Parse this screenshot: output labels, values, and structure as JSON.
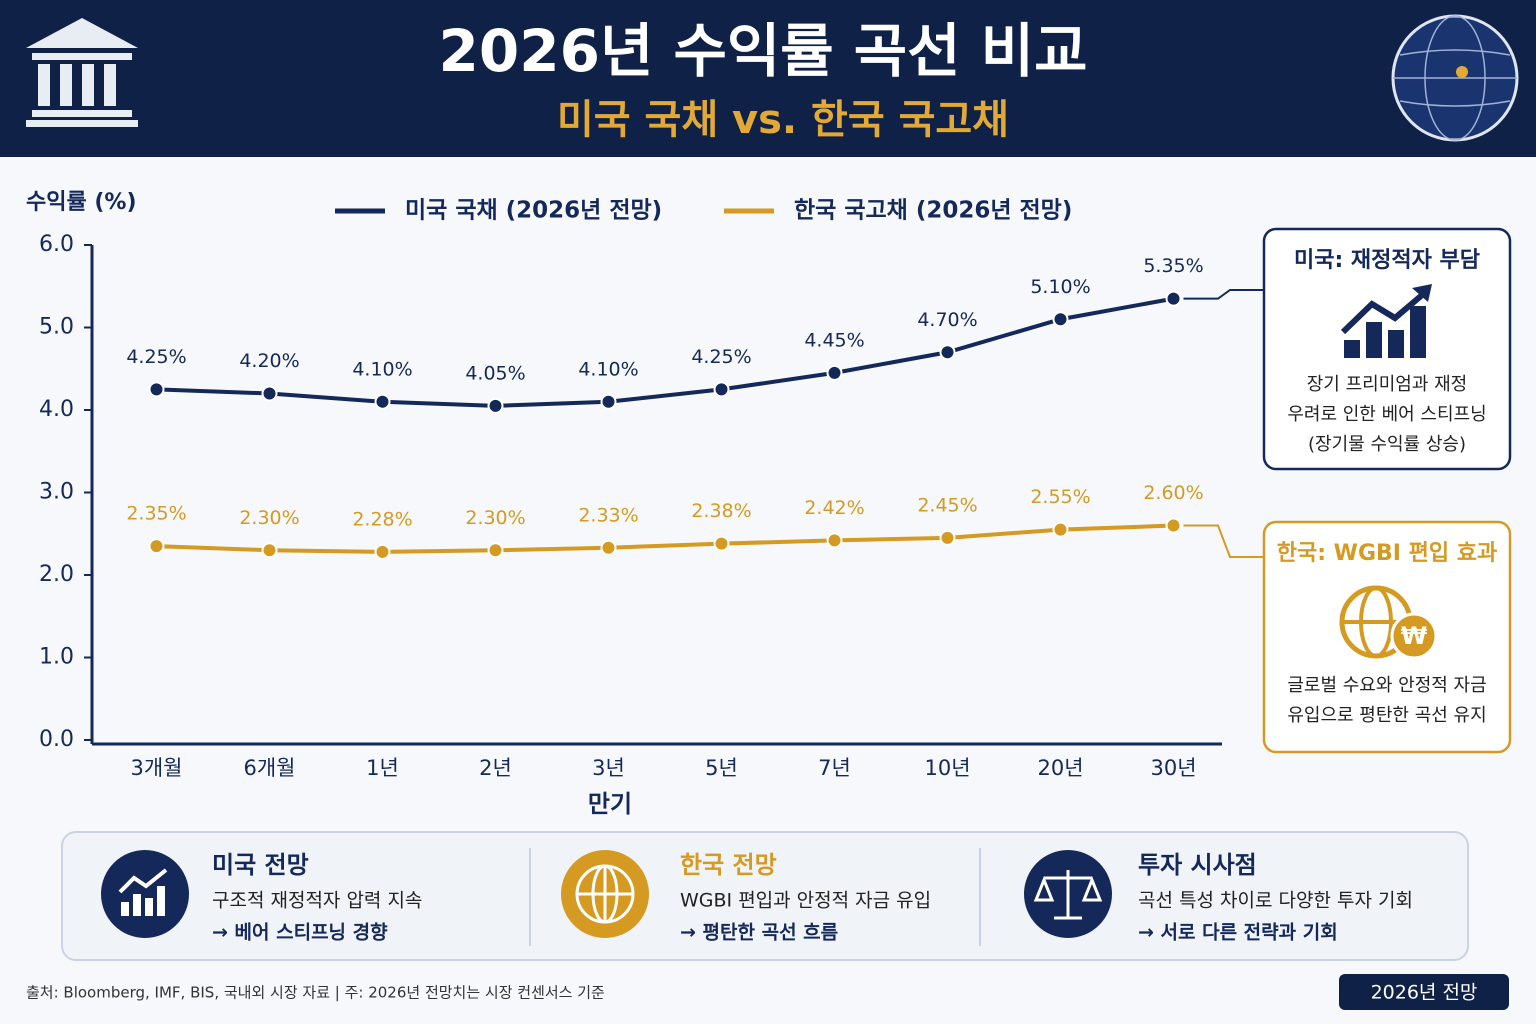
{
  "header": {
    "title": "2026년 수익률 곡선 비교",
    "subtitle": "미국 국채 vs. 한국 국고채"
  },
  "chart_data": {
    "type": "line",
    "y_label": "수익률 (%)",
    "x_label": "만기",
    "categories": [
      "3개월",
      "6개월",
      "1년",
      "2년",
      "3년",
      "5년",
      "7년",
      "10년",
      "20년",
      "30년"
    ],
    "series": [
      {
        "name": "미국 국채 (2026년 전망)",
        "color": "#14285a",
        "values": [
          4.25,
          4.2,
          4.1,
          4.05,
          4.1,
          4.25,
          4.45,
          4.7,
          5.1,
          5.35
        ],
        "value_labels": [
          "4.25%",
          "4.20%",
          "4.10%",
          "4.05%",
          "4.10%",
          "4.25%",
          "4.45%",
          "4.70%",
          "5.10%",
          "5.35%"
        ]
      },
      {
        "name": "한국 국고채 (2026년 전망)",
        "color": "#d49a22",
        "values": [
          2.35,
          2.3,
          2.28,
          2.3,
          2.33,
          2.38,
          2.42,
          2.45,
          2.55,
          2.6
        ],
        "value_labels": [
          "2.35%",
          "2.30%",
          "2.28%",
          "2.30%",
          "2.33%",
          "2.38%",
          "2.42%",
          "2.45%",
          "2.55%",
          "2.60%"
        ]
      }
    ],
    "ylim": [
      0,
      6
    ],
    "yticks": [
      {
        "value": 0,
        "label": "0.0"
      },
      {
        "value": 1,
        "label": "1.0"
      },
      {
        "value": 2,
        "label": "2.0"
      },
      {
        "value": 3,
        "label": "3.0"
      },
      {
        "value": 4,
        "label": "4.0"
      },
      {
        "value": 5,
        "label": "5.0"
      },
      {
        "value": 6,
        "label": "6.0"
      }
    ],
    "grid": false,
    "legend": "top"
  },
  "callouts": [
    {
      "title": "미국: 재정적자 부담",
      "lines": [
        "장기 프리미엄과 재정",
        "우려로 인한 베어 스티프닝",
        "(장기물 수익률 상승)"
      ]
    },
    {
      "title": "한국: WGBI 편입 효과",
      "lines": [
        "글로벌 수요와 안정적 자금",
        "유입으로 평탄한 곡선 유지"
      ]
    }
  ],
  "summary": [
    {
      "title": "미국 전망",
      "text": "구조적 재정적자 압력 지속",
      "conclusion": "→ 베어 스티프닝 경향"
    },
    {
      "title": "한국 전망",
      "text": "WGBI 편입과 안정적 자금 유입",
      "conclusion": "→ 평탄한 곡선 흐름"
    },
    {
      "title": "투자 시사점",
      "text": "곡선 특성 차이로 다양한 투자 기회",
      "conclusion": "→ 서로 다른 전략과 기회"
    }
  ],
  "footer": {
    "source": "출처: Bloomberg, IMF, BIS, 국내외 시장 자료  |  주: 2026년 전망치는 시장 컨센서스 기준",
    "badge": "2026년 전망"
  }
}
